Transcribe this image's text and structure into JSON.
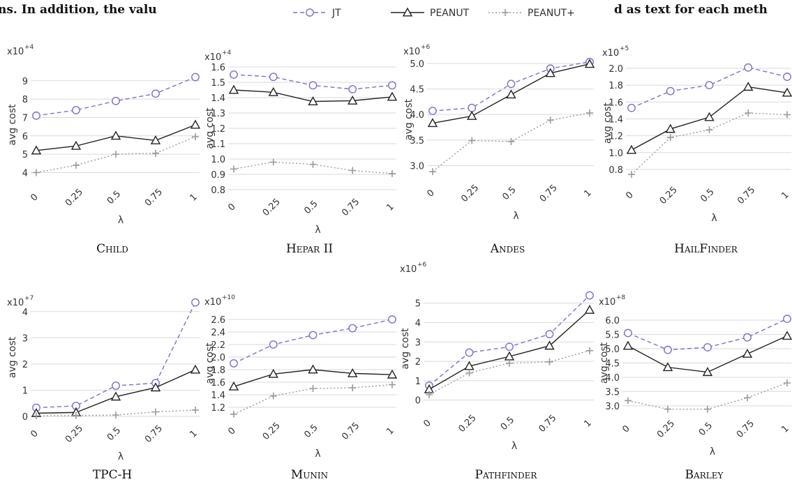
{
  "header": {
    "fragment_left": "ns. In addition, the valu",
    "fragment_right": "d as text for each meth"
  },
  "legend": [
    {
      "label": "JT",
      "color": "#7b6fcf",
      "dash": "6,4",
      "marker": "circle"
    },
    {
      "label": "PEANUT",
      "color": "#222222",
      "dash": "",
      "marker": "triangle"
    },
    {
      "label": "PEANUT+",
      "color": "#9a9a9a",
      "dash": "2,3",
      "marker": "plus"
    }
  ],
  "colors": {
    "jt": "#7b6fcf",
    "peanut": "#222222",
    "peanut_plus": "#9a9a9a",
    "grid": "#d9d9d9"
  },
  "chart_data": [
    {
      "type": "line",
      "caption": "Child",
      "exponent": "4",
      "xlabel": "λ",
      "ylabel": "avg cost",
      "x": [
        "0",
        "0.25",
        "0.5",
        "0.75",
        "1"
      ],
      "yticks": [
        "4",
        "5",
        "6",
        "7",
        "8",
        "9"
      ],
      "ylim": [
        3.6,
        9.6
      ],
      "series": [
        {
          "name": "JT",
          "values": [
            7.1,
            7.4,
            7.9,
            8.3,
            9.2
          ]
        },
        {
          "name": "PEANUT",
          "values": [
            5.2,
            5.45,
            6.0,
            5.75,
            6.6
          ]
        },
        {
          "name": "PEANUT+",
          "values": [
            4.0,
            4.4,
            5.0,
            5.05,
            5.95
          ]
        }
      ]
    },
    {
      "type": "line",
      "caption": "Hepar II",
      "exponent": "4",
      "xlabel": "λ",
      "ylabel": "avg cost",
      "x": [
        "0",
        "0.25",
        "0.5",
        "0.75",
        "1"
      ],
      "yticks": [
        "0.8",
        "0.9",
        "1.0",
        "1.1",
        "1.2",
        "1.3",
        "1.4",
        "1.5",
        "1.6"
      ],
      "ylim": [
        0.8,
        1.6
      ],
      "series": [
        {
          "name": "JT",
          "values": [
            1.55,
            1.535,
            1.48,
            1.455,
            1.48
          ]
        },
        {
          "name": "PEANUT",
          "values": [
            1.45,
            1.435,
            1.375,
            1.38,
            1.405
          ]
        },
        {
          "name": "PEANUT+",
          "values": [
            0.935,
            0.98,
            0.965,
            0.925,
            0.905
          ]
        }
      ]
    },
    {
      "type": "line",
      "caption": "Andes",
      "exponent": "6",
      "xlabel": "λ",
      "ylabel": "avg cost",
      "x": [
        "0",
        "0.25",
        "0.5",
        "0.75",
        "1"
      ],
      "yticks": [
        "3.0",
        "3.5",
        "4.0",
        "4.5",
        "5.0"
      ],
      "ylim": [
        2.8,
        5.0
      ],
      "series": [
        {
          "name": "JT",
          "values": [
            4.07,
            4.13,
            4.6,
            4.9,
            5.03
          ]
        },
        {
          "name": "PEANUT",
          "values": [
            3.83,
            3.97,
            4.39,
            4.81,
            4.99
          ]
        },
        {
          "name": "PEANUT+",
          "values": [
            2.88,
            3.49,
            3.47,
            3.89,
            4.03
          ]
        }
      ]
    },
    {
      "type": "line",
      "caption": "HailFinder",
      "exponent": "5",
      "xlabel": "λ",
      "ylabel": "avg cost",
      "x": [
        "0",
        "0.25",
        "0.5",
        "0.75",
        "1"
      ],
      "yticks": [
        "0.8",
        "1.0",
        "1.2",
        "1.4",
        "1.6",
        "1.8",
        "2.0"
      ],
      "ylim": [
        0.7,
        2.0
      ],
      "series": [
        {
          "name": "JT",
          "values": [
            1.53,
            1.73,
            1.8,
            2.01,
            1.9
          ]
        },
        {
          "name": "PEANUT",
          "values": [
            1.03,
            1.28,
            1.42,
            1.78,
            1.71
          ]
        },
        {
          "name": "PEANUT+",
          "values": [
            0.74,
            1.18,
            1.27,
            1.47,
            1.45
          ]
        }
      ]
    },
    {
      "type": "line",
      "caption": "TPC-H",
      "exponent": "7",
      "xlabel": "λ",
      "ylabel": "avg cost",
      "x": [
        "0",
        "0.25",
        "0.5",
        "0.75",
        "1"
      ],
      "yticks": [
        "0",
        "1",
        "2",
        "3",
        "4"
      ],
      "ylim": [
        0,
        4.5
      ],
      "series": [
        {
          "name": "JT",
          "values": [
            0.33,
            0.4,
            1.17,
            1.27,
            4.35
          ]
        },
        {
          "name": "PEANUT",
          "values": [
            0.12,
            0.15,
            0.75,
            1.1,
            1.78
          ]
        },
        {
          "name": "PEANUT+",
          "values": [
            0.02,
            0.03,
            0.05,
            0.17,
            0.24
          ]
        }
      ]
    },
    {
      "type": "line",
      "caption": "Munin",
      "exponent": "10",
      "xlabel": "λ",
      "ylabel": "avg cost",
      "x": [
        "0",
        "0.25",
        "0.5",
        "0.75",
        "1"
      ],
      "yticks": [
        "1.2",
        "1.4",
        "1.6",
        "1.8",
        "2.0",
        "2.2",
        "2.4",
        "2.6"
      ],
      "ylim": [
        1.1,
        2.7
      ],
      "series": [
        {
          "name": "JT",
          "values": [
            1.9,
            2.2,
            2.35,
            2.46,
            2.6
          ]
        },
        {
          "name": "PEANUT",
          "values": [
            1.53,
            1.73,
            1.8,
            1.74,
            1.72
          ]
        },
        {
          "name": "PEANUT+",
          "values": [
            1.09,
            1.38,
            1.5,
            1.51,
            1.56
          ]
        }
      ]
    },
    {
      "type": "line",
      "caption": "Pathfinder",
      "exponent": "6",
      "xlabel": "λ",
      "ylabel": "avg cost",
      "x": [
        "0",
        "0.25",
        "0.5",
        "0.75",
        "1"
      ],
      "yticks": [
        "0",
        "1",
        "2",
        "3",
        "4",
        "5"
      ],
      "ylim": [
        -0.3,
        5.6
      ],
      "series": [
        {
          "name": "JT",
          "values": [
            0.75,
            2.45,
            2.75,
            3.4,
            5.4
          ]
        },
        {
          "name": "PEANUT",
          "values": [
            0.55,
            1.75,
            2.25,
            2.8,
            4.65
          ]
        },
        {
          "name": "PEANUT+",
          "values": [
            0.28,
            1.4,
            1.9,
            1.97,
            2.55
          ]
        }
      ]
    },
    {
      "type": "line",
      "caption": "Barley",
      "exponent": "8",
      "xlabel": "λ",
      "ylabel": "avg cost",
      "x": [
        "0",
        "0.25",
        "0.5",
        "0.75",
        "1"
      ],
      "yticks": [
        "3.0",
        "3.5",
        "4.0",
        "4.5",
        "5.0",
        "5.5",
        "6.0"
      ],
      "ylim": [
        2.8,
        6.2
      ],
      "series": [
        {
          "name": "JT",
          "values": [
            5.55,
            4.96,
            5.05,
            5.4,
            6.05
          ]
        },
        {
          "name": "PEANUT",
          "values": [
            5.1,
            4.35,
            4.18,
            4.82,
            5.45
          ]
        },
        {
          "name": "PEANUT+",
          "values": [
            3.18,
            2.88,
            2.88,
            3.28,
            3.8
          ]
        }
      ]
    }
  ]
}
